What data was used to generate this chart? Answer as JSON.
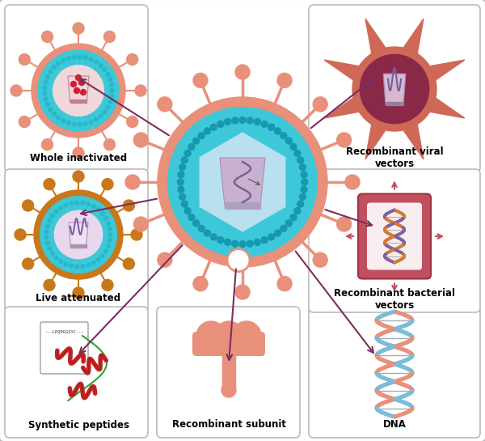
{
  "background_color": "#ffffff",
  "arrow_color": "#7b2d5e",
  "labels": {
    "whole_inactivated": "Whole inactivated",
    "live_attenuated": "Live attenuated",
    "synthetic_peptides": "Synthetic peptides",
    "recombinant_subunit": "Recombinant subunit",
    "recombinant_viral": "Recombinant viral\nvectors",
    "recombinant_bacterial": "Recombinant bacterial\nvectors",
    "dna": "DNA"
  },
  "spike_color_salmon": "#e8907a",
  "spike_color_orange": "#c8781a",
  "teal_color": "#40c8d8",
  "dot_color": "#28b8cc",
  "dark_red": "#7b2038",
  "med_red": "#c05060",
  "panel_border": "#bbbbbb"
}
